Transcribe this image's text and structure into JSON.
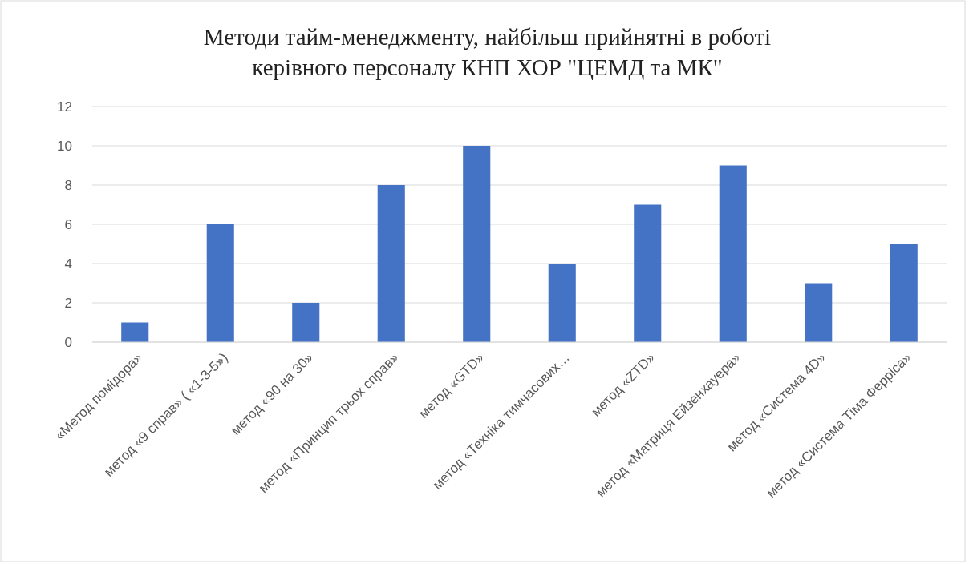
{
  "chart_data": {
    "type": "bar",
    "title": "Методи тайм-менеджменту, найбільш прийнятні в роботі керівного персоналу КНП ХОР \"ЦЕМД та МК\"",
    "categories": [
      "«Метод помідора»",
      "метод «9 справ» ( «1-3-5»)",
      "метод «90 на 30»",
      "метод «Принцип трьох справ»",
      "метод «GTD»",
      "метод «Техніка тимчасових…",
      "метод «ZTD»",
      "метод «Матриця Ейзенхауера»",
      "метод «Система 4D»",
      "метод «Система Тіма Ферріса»"
    ],
    "values": [
      1,
      6,
      2,
      8,
      10,
      4,
      7,
      9,
      3,
      5
    ],
    "color": "#4472c4",
    "ylim": [
      0,
      12
    ],
    "yticks": [
      0,
      2,
      4,
      6,
      8,
      10,
      12
    ],
    "grid": "y"
  }
}
